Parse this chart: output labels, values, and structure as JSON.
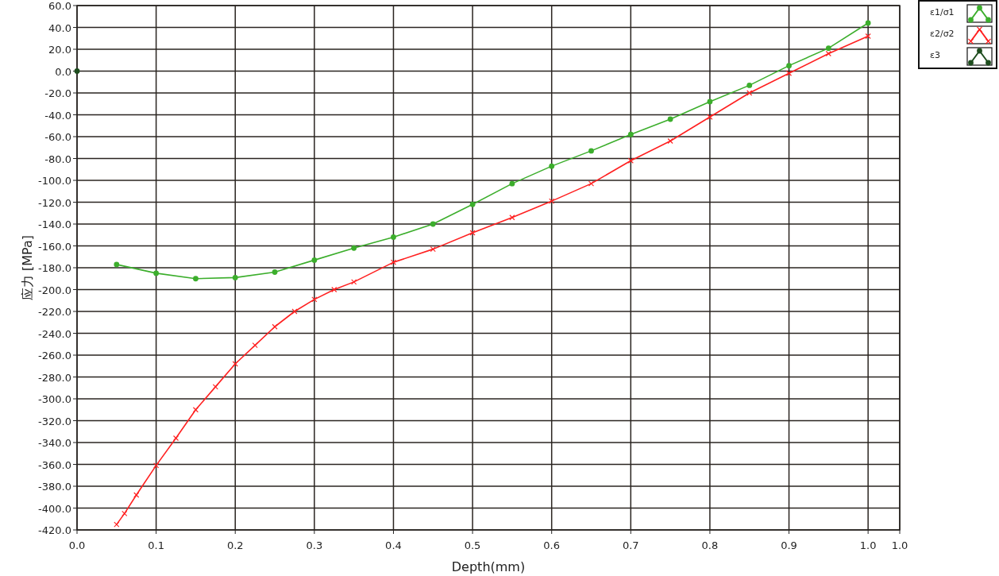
{
  "chart_data": {
    "type": "line",
    "xlabel": "Depth(mm)",
    "ylabel": "应力 [MPa]",
    "xlim": [
      0,
      1.04
    ],
    "ylim": [
      -420,
      60
    ],
    "xticks": [
      {
        "value": 0,
        "label": "0.0"
      },
      {
        "value": 0.1,
        "label": "0.1"
      },
      {
        "value": 0.2,
        "label": "0.2"
      },
      {
        "value": 0.3,
        "label": "0.3"
      },
      {
        "value": 0.4,
        "label": "0.4"
      },
      {
        "value": 0.5,
        "label": "0.5"
      },
      {
        "value": 0.6,
        "label": "0.6"
      },
      {
        "value": 0.7,
        "label": "0.7"
      },
      {
        "value": 0.8,
        "label": "0.8"
      },
      {
        "value": 0.9,
        "label": "0.9"
      },
      {
        "value": 1.0,
        "label": "1.0"
      },
      {
        "value": 1.04,
        "label": "1.0"
      }
    ],
    "yticks": [
      {
        "value": 60,
        "label": "60.0"
      },
      {
        "value": 40,
        "label": "40.0"
      },
      {
        "value": 20,
        "label": "20.0"
      },
      {
        "value": 0,
        "label": "0.0"
      },
      {
        "value": -20,
        "label": "-20.0"
      },
      {
        "value": -40,
        "label": "-40.0"
      },
      {
        "value": -60,
        "label": "-60.0"
      },
      {
        "value": -80,
        "label": "-80.0"
      },
      {
        "value": -100,
        "label": "-100.0"
      },
      {
        "value": -120,
        "label": "-120.0"
      },
      {
        "value": -140,
        "label": "-140.0"
      },
      {
        "value": -160,
        "label": "-160.0"
      },
      {
        "value": -180,
        "label": "-180.0"
      },
      {
        "value": -200,
        "label": "-200.0"
      },
      {
        "value": -220,
        "label": "-220.0"
      },
      {
        "value": -240,
        "label": "-240.0"
      },
      {
        "value": -260,
        "label": "-260.0"
      },
      {
        "value": -280,
        "label": "-280.0"
      },
      {
        "value": -300,
        "label": "-300.0"
      },
      {
        "value": -320,
        "label": "-320.0"
      },
      {
        "value": -340,
        "label": "-340.0"
      },
      {
        "value": -360,
        "label": "-360.0"
      },
      {
        "value": -380,
        "label": "-380.0"
      },
      {
        "value": -400,
        "label": "-400.0"
      },
      {
        "value": -420,
        "label": "-420.0"
      }
    ],
    "grid": true,
    "legend": "top right",
    "series": [
      {
        "name": "ε1/σ1",
        "color": "#3cae2c",
        "marker": "circle",
        "x": [
          0.05,
          0.1,
          0.15,
          0.2,
          0.25,
          0.3,
          0.35,
          0.4,
          0.45,
          0.5,
          0.55,
          0.6,
          0.65,
          0.7,
          0.75,
          0.8,
          0.85,
          0.9,
          0.95,
          1.0
        ],
        "values": [
          -177,
          -185,
          -190,
          -189,
          -184,
          -173,
          -162,
          -152,
          -140,
          -122,
          -103,
          -87,
          -73,
          -58,
          -44,
          -28,
          -13,
          5,
          21,
          44
        ]
      },
      {
        "name": "ε2/σ2",
        "color": "#ff2020",
        "marker": "cross",
        "x": [
          0.05,
          0.06,
          0.075,
          0.1,
          0.125,
          0.15,
          0.175,
          0.2,
          0.225,
          0.25,
          0.275,
          0.3,
          0.325,
          0.35,
          0.4,
          0.45,
          0.5,
          0.55,
          0.6,
          0.65,
          0.7,
          0.75,
          0.8,
          0.85,
          0.9,
          0.95,
          1.0
        ],
        "values": [
          -415,
          -405,
          -388,
          -361,
          -336,
          -310,
          -289,
          -268,
          -251,
          -234,
          -220,
          -209,
          -200,
          -193,
          -175,
          -163,
          -148,
          -134,
          -119,
          -103,
          -82,
          -64,
          -42,
          -20,
          -2,
          16,
          32
        ]
      },
      {
        "name": "ε3",
        "color": "#1e4d1e",
        "marker": "circle",
        "x": [
          0
        ],
        "values": [
          0
        ]
      }
    ]
  }
}
